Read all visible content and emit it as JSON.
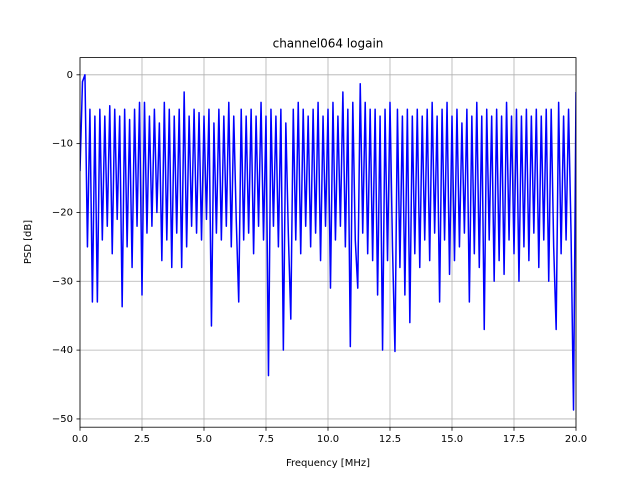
{
  "chart_data": {
    "type": "line",
    "title": "channel064 logain",
    "xlabel": "Frequency [MHz]",
    "ylabel": "PSD [dB]",
    "color": "#0000ff",
    "grid": true,
    "xlim": [
      0,
      20
    ],
    "ylim": [
      -51.2,
      2.5
    ],
    "xticks": [
      {
        "value": 0,
        "label": "0.0"
      },
      2.5,
      {
        "value": 5,
        "label": "5.0"
      },
      7.5,
      {
        "value": 10,
        "label": "10.0"
      },
      12.5,
      {
        "value": 15,
        "label": "15.0"
      },
      17.5,
      {
        "value": 20,
        "label": "20.0"
      }
    ],
    "yticks": [
      {
        "value": 0,
        "label": "0"
      },
      {
        "value": -10,
        "label": "−10"
      },
      {
        "value": -20,
        "label": "−20"
      },
      {
        "value": -30,
        "label": "−30"
      },
      {
        "value": -40,
        "label": "−40"
      },
      {
        "value": -50,
        "label": "−50"
      }
    ],
    "x": [
      0,
      0.1,
      0.2,
      0.3,
      0.4,
      0.5,
      0.6,
      0.7,
      0.8,
      0.9,
      1,
      1.1,
      1.2,
      1.3,
      1.4,
      1.5,
      1.6,
      1.7,
      1.8,
      1.9,
      2,
      2.1,
      2.2,
      2.3,
      2.4,
      2.5,
      2.6,
      2.7,
      2.8,
      2.9,
      3,
      3.1,
      3.2,
      3.3,
      3.4,
      3.5,
      3.6,
      3.7,
      3.8,
      3.9,
      4,
      4.1,
      4.2,
      4.3,
      4.4,
      4.5,
      4.6,
      4.7,
      4.8,
      4.9,
      5,
      5.1,
      5.2,
      5.3,
      5.4,
      5.5,
      5.6,
      5.7,
      5.8,
      5.9,
      6,
      6.1,
      6.2,
      6.3,
      6.4,
      6.5,
      6.6,
      6.7,
      6.8,
      6.9,
      7,
      7.1,
      7.2,
      7.3,
      7.4,
      7.5,
      7.6,
      7.7,
      7.8,
      7.9,
      8,
      8.1,
      8.2,
      8.3,
      8.4,
      8.5,
      8.6,
      8.7,
      8.8,
      8.9,
      9,
      9.1,
      9.2,
      9.3,
      9.4,
      9.5,
      9.6,
      9.7,
      9.8,
      9.9,
      10,
      10.1,
      10.2,
      10.3,
      10.4,
      10.5,
      10.6,
      10.7,
      10.8,
      10.9,
      11,
      11.1,
      11.2,
      11.3,
      11.4,
      11.5,
      11.6,
      11.7,
      11.8,
      11.9,
      12,
      12.1,
      12.2,
      12.3,
      12.4,
      12.5,
      12.6,
      12.7,
      12.8,
      12.9,
      13,
      13.1,
      13.2,
      13.3,
      13.4,
      13.5,
      13.6,
      13.7,
      13.8,
      13.9,
      14,
      14.1,
      14.2,
      14.3,
      14.4,
      14.5,
      14.6,
      14.7,
      14.8,
      14.9,
      15,
      15.1,
      15.2,
      15.3,
      15.4,
      15.5,
      15.6,
      15.7,
      15.8,
      15.9,
      16,
      16.1,
      16.2,
      16.3,
      16.4,
      16.5,
      16.6,
      16.7,
      16.8,
      16.9,
      17,
      17.1,
      17.2,
      17.3,
      17.4,
      17.5,
      17.6,
      17.7,
      17.8,
      17.9,
      18,
      18.1,
      18.2,
      18.3,
      18.4,
      18.5,
      18.6,
      18.7,
      18.8,
      18.9,
      19,
      19.1,
      19.2,
      19.3,
      19.4,
      19.5,
      19.6,
      19.7,
      19.8,
      19.9,
      20
    ],
    "values": [
      -14,
      -1,
      0,
      -25,
      -5,
      -33,
      -6,
      -33,
      -5,
      -24,
      -6,
      -22,
      -4.5,
      -26,
      -5,
      -21,
      -6,
      -33.7,
      -5,
      -25,
      -6.5,
      -28,
      -5,
      -22,
      -4,
      -32,
      -4,
      -23,
      -6,
      -22,
      -5,
      -20,
      -7,
      -27,
      -4,
      -24,
      -5,
      -28,
      -6,
      -23,
      -5,
      -28,
      -2.5,
      -25,
      -6,
      -22,
      -5,
      -23,
      -5.5,
      -24,
      -6,
      -21,
      -5,
      -36.5,
      -7,
      -23,
      -5,
      -24,
      -6,
      -22,
      -4,
      -25,
      -6,
      -21,
      -33,
      -5,
      -24,
      -6,
      -23,
      -5,
      -26,
      -6,
      -22,
      -4,
      -24,
      -6,
      -43.7,
      -5,
      -22,
      -6,
      -25,
      -5,
      -40,
      -7,
      -23,
      -35.5,
      -5,
      -24,
      -4,
      -26,
      -5,
      -22,
      -6,
      -25,
      -5,
      -23,
      -4,
      -27,
      -6,
      -22,
      -5,
      -31,
      -4,
      -24,
      -6,
      -22,
      -2.5,
      -25,
      -5,
      -39.5,
      -4,
      -24,
      -31,
      -1.3,
      -23,
      -4,
      -26,
      -5,
      -27,
      -5,
      -32,
      -6,
      -40,
      -5,
      -27,
      -4,
      -25,
      -40.2,
      -5,
      -28,
      -6,
      -32,
      -5,
      -36,
      -6,
      -26,
      -5,
      -28,
      -6,
      -24,
      -5,
      -27,
      -4,
      -23,
      -6,
      -33,
      -5,
      -24,
      -4,
      -29,
      -6,
      -27,
      -5,
      -25,
      -7,
      -23,
      -5,
      -33,
      -6,
      -26,
      -4,
      -28,
      -6,
      -37,
      -5,
      -24,
      -6,
      -30,
      -5,
      -27,
      -6,
      -29,
      -4,
      -24,
      -6,
      -26,
      -5,
      -30,
      -6,
      -25,
      -5,
      -27,
      -6,
      -23,
      -5,
      -28,
      -6,
      -24,
      -5,
      -30,
      -5,
      -25,
      -37,
      -4,
      -26,
      -6,
      -24,
      -5,
      -23,
      -48.7,
      -2.5
    ]
  }
}
